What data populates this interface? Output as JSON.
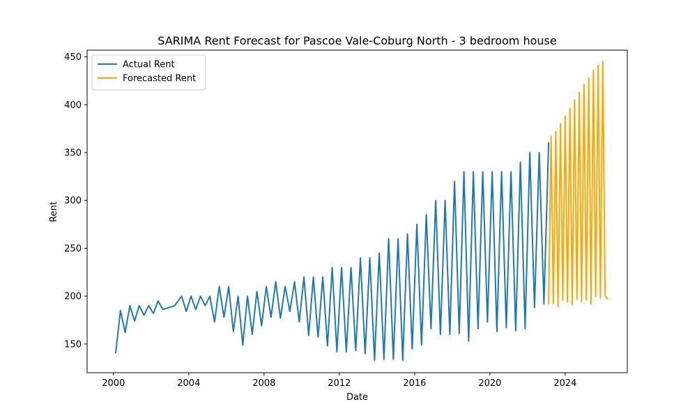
{
  "chart_data": {
    "type": "line",
    "title": "SARIMA Rent Forecast for Pascoe Vale-Coburg North - 3 bedroom house",
    "xlabel": "Date",
    "ylabel": "Rent",
    "xlim": [
      1998.6,
      2027.3
    ],
    "ylim": [
      120,
      457
    ],
    "xticks": [
      2000,
      2004,
      2008,
      2012,
      2016,
      2020,
      2024
    ],
    "xtick_labels": [
      "2000",
      "2004",
      "2008",
      "2012",
      "2016",
      "2020",
      "2024"
    ],
    "yticks": [
      150,
      200,
      250,
      300,
      350,
      400,
      450
    ],
    "ytick_labels": [
      "150",
      "200",
      "250",
      "300",
      "350",
      "400",
      "450"
    ],
    "grid": false,
    "legend_position": "upper-left",
    "series": [
      {
        "name": "Actual Rent",
        "color": "#1f77b4",
        "x": [
          2000.12,
          2000.37,
          2000.62,
          2000.87,
          2001.12,
          2001.37,
          2001.62,
          2001.87,
          2002.12,
          2002.37,
          2002.62,
          2003.25,
          2003.62,
          2003.87,
          2004.12,
          2004.37,
          2004.62,
          2004.87,
          2005.12,
          2005.37,
          2005.62,
          2005.87,
          2006.12,
          2006.37,
          2006.62,
          2006.87,
          2007.12,
          2007.37,
          2007.62,
          2007.87,
          2008.12,
          2008.37,
          2008.62,
          2008.87,
          2009.12,
          2009.37,
          2009.62,
          2009.87,
          2010.12,
          2010.37,
          2010.62,
          2010.87,
          2011.12,
          2011.37,
          2011.62,
          2011.87,
          2012.12,
          2012.37,
          2012.62,
          2012.87,
          2013.12,
          2013.37,
          2013.62,
          2013.87,
          2014.12,
          2014.37,
          2014.62,
          2014.87,
          2015.12,
          2015.37,
          2015.62,
          2015.87,
          2016.12,
          2016.37,
          2016.62,
          2016.87,
          2017.12,
          2017.37,
          2017.62,
          2017.87,
          2018.12,
          2018.37,
          2018.62,
          2018.87,
          2019.12,
          2019.37,
          2019.62,
          2019.87,
          2020.12,
          2020.37,
          2020.62,
          2020.87,
          2021.12,
          2021.37,
          2021.62,
          2021.87,
          2022.12,
          2022.37,
          2022.62,
          2022.87,
          2023.12
        ],
        "values": [
          141,
          185,
          162,
          190,
          174,
          190,
          180,
          190,
          182,
          195,
          186,
          190,
          200,
          184,
          200,
          186,
          200,
          190,
          200,
          173,
          210,
          178,
          210,
          163,
          200,
          149,
          200,
          160,
          205,
          169,
          210,
          178,
          215,
          177,
          210,
          184,
          215,
          173,
          220,
          159,
          220,
          157,
          220,
          148,
          230,
          142,
          230,
          142,
          230,
          143,
          240,
          140,
          240,
          133,
          245,
          134,
          260,
          134,
          260,
          133,
          265,
          145,
          275,
          149,
          285,
          166,
          300,
          160,
          300,
          160,
          320,
          161,
          330,
          153,
          330,
          166,
          330,
          173,
          330,
          163,
          330,
          167,
          330,
          164,
          340,
          166,
          350,
          188,
          350,
          192,
          360
        ]
      },
      {
        "name": "Forecasted Rent",
        "color": "#ffa500",
        "x": [
          2023.12,
          2023.25,
          2023.37,
          2023.5,
          2023.62,
          2023.75,
          2023.87,
          2024.0,
          2024.12,
          2024.25,
          2024.37,
          2024.5,
          2024.62,
          2024.75,
          2024.87,
          2025.0,
          2025.12,
          2025.25,
          2025.37,
          2025.5,
          2025.62,
          2025.75,
          2025.87,
          2026.0,
          2026.12,
          2026.25
        ],
        "values": [
          192,
          367,
          192,
          372,
          189,
          380,
          196,
          388,
          194,
          396,
          191,
          405,
          197,
          413,
          194,
          421,
          196,
          428,
          192,
          436,
          200,
          441,
          198,
          445,
          200,
          197
        ]
      }
    ]
  }
}
